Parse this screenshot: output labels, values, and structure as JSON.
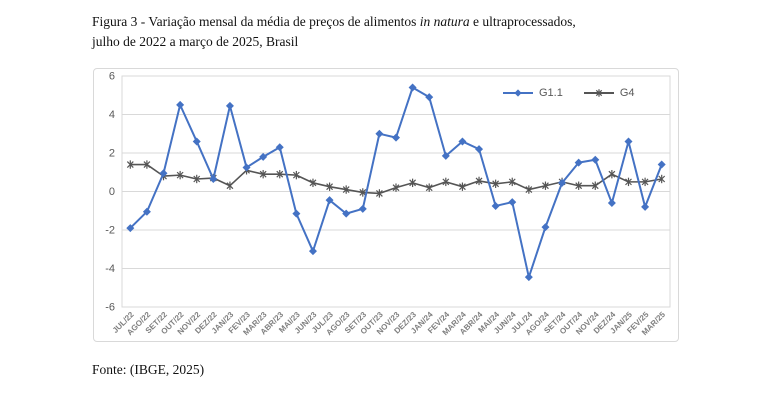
{
  "figure": {
    "title_pre": "Figura 3 - Variação mensal da média de preços de alimentos ",
    "title_italic": "in natura",
    "title_post": " e ultraprocessados,",
    "title_line2": "julho de 2022 a março de 2025, Brasil",
    "source": "Fonte: (IBGE, 2025)"
  },
  "chart_data": {
    "type": "line",
    "title": "",
    "xlabel": "",
    "ylabel": "",
    "ylim": [
      -6,
      6
    ],
    "yticks": [
      6,
      4,
      2,
      0,
      -2,
      -4,
      -6
    ],
    "grid": true,
    "legend_position": "top-right-inside",
    "colors": {
      "grid": "#d9d9d9",
      "axis_text": "#595959",
      "xaxis_text": "#7f7f7f"
    },
    "categories": [
      "JUL/22",
      "AGO/22",
      "SET/22",
      "OUT/22",
      "NOV/22",
      "DEZ/22",
      "JAN/23",
      "FEV/23",
      "MAR/23",
      "ABR/23",
      "MAI/23",
      "JUN/23",
      "JUL/23",
      "AGO/23",
      "SET/23",
      "OUT/23",
      "NOV/23",
      "DEZ/23",
      "JAN/24",
      "FEV/24",
      "MAR/24",
      "ABR/24",
      "MAI/24",
      "JUN/24",
      "JUL/24",
      "AGO/24",
      "SET/24",
      "OUT/24",
      "NOV/24",
      "DEZ/24",
      "JAN/25",
      "FEV/25",
      "MAR/25"
    ],
    "series": [
      {
        "name": "G1.1",
        "color": "#4472c4",
        "marker": "diamond",
        "values": [
          -1.9,
          -1.05,
          0.95,
          4.5,
          2.6,
          0.65,
          4.45,
          1.25,
          1.8,
          2.3,
          -1.15,
          -3.1,
          -0.45,
          -1.15,
          -0.9,
          3.0,
          2.8,
          5.4,
          4.9,
          1.85,
          2.6,
          2.2,
          -0.75,
          -0.55,
          -4.45,
          -1.85,
          0.45,
          1.5,
          1.65,
          -0.6,
          2.6,
          -0.8,
          1.4
        ]
      },
      {
        "name": "G4",
        "color": "#555555",
        "marker": "asterisk",
        "values": [
          1.4,
          1.4,
          0.8,
          0.85,
          0.65,
          0.7,
          0.3,
          1.1,
          0.9,
          0.9,
          0.85,
          0.45,
          0.25,
          0.1,
          -0.05,
          -0.1,
          0.2,
          0.45,
          0.2,
          0.5,
          0.25,
          0.55,
          0.4,
          0.5,
          0.1,
          0.3,
          0.5,
          0.3,
          0.3,
          0.9,
          0.5,
          0.5,
          0.65
        ]
      }
    ]
  }
}
